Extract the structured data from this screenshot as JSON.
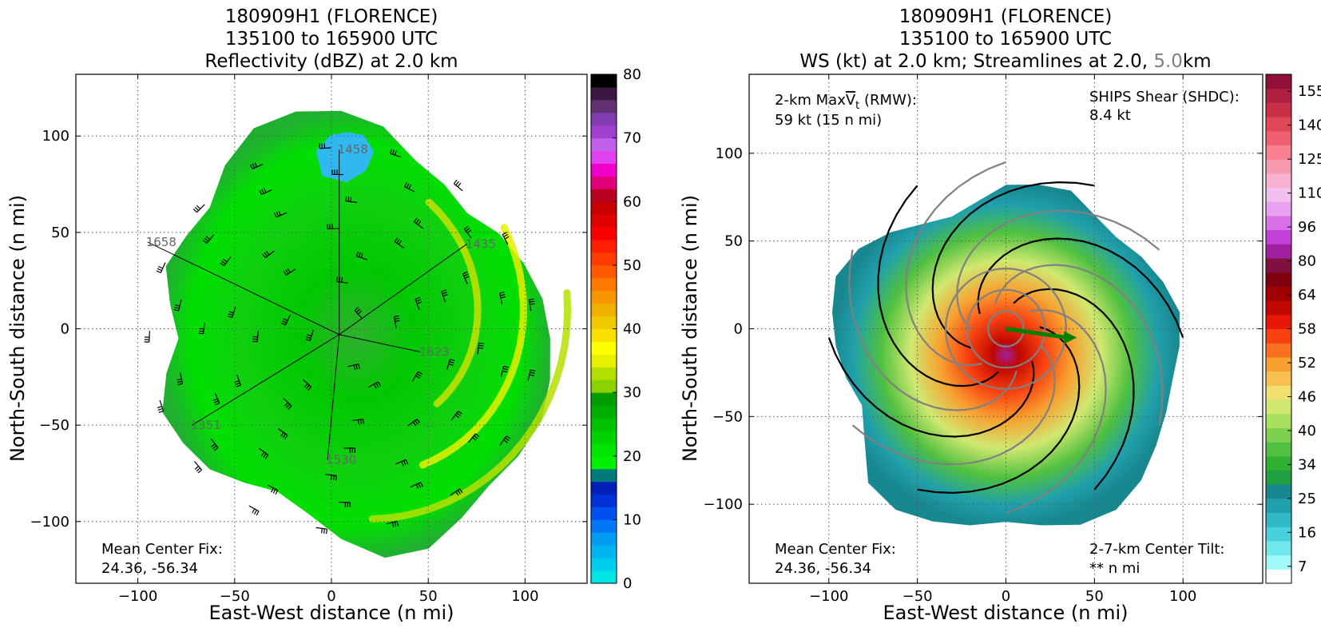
{
  "chart_data": [
    {
      "type": "heatmap",
      "title_lines": [
        "180909H1 (FLORENCE)",
        "135100 to 165900 UTC",
        "Reflectivity (dBZ) at 2.0 km"
      ],
      "xlabel": "East-West distance (n mi)",
      "ylabel": "North-South distance (n mi)",
      "xlim": [
        -132,
        132
      ],
      "ylim": [
        -132,
        132
      ],
      "xticks": [
        -100,
        -50,
        0,
        50,
        100
      ],
      "yticks": [
        -100,
        -50,
        0,
        50,
        100
      ],
      "xtick_labels": [
        "−100",
        "−50",
        "0",
        "50",
        "100"
      ],
      "ytick_labels": [
        "−100",
        "−50",
        "0",
        "50",
        "100"
      ],
      "grid": true,
      "colorbar": {
        "range": [
          0,
          80
        ],
        "ticks": [
          0,
          10,
          20,
          30,
          40,
          50,
          60,
          70,
          80
        ],
        "tick_labels": [
          "0",
          "10",
          "20",
          "30",
          "40",
          "50",
          "60",
          "70",
          "80"
        ],
        "colors": [
          "#00e4e4",
          "#00cdee",
          "#00b4f0",
          "#009cf3",
          "#0078f5",
          "#0050f0",
          "#0032d8",
          "#0020b8",
          "#007a7a",
          "#00f000",
          "#00e400",
          "#00d200",
          "#00c000",
          "#00ae00",
          "#009c00",
          "#8cd200",
          "#b4e000",
          "#e8f000",
          "#ffff00",
          "#f8e000",
          "#f0c800",
          "#f0b000",
          "#f89600",
          "#ff7800",
          "#ff5a00",
          "#ff3c00",
          "#ff1e00",
          "#f80000",
          "#e00000",
          "#c80000",
          "#b80020",
          "#e0007a",
          "#f000c8",
          "#e040f0",
          "#c060e8",
          "#a040d0",
          "#803cb0",
          "#603070",
          "#3a1840",
          "#000000"
        ]
      },
      "flight_legs": [
        {
          "label": "1458",
          "start": [
            4,
            93
          ],
          "end": [
            4,
            -3
          ]
        },
        {
          "label": "1435",
          "start": [
            70,
            44
          ],
          "end": [
            4,
            -3
          ]
        },
        {
          "label": "1658",
          "start": [
            -95,
            45
          ],
          "end": [
            4,
            -3
          ]
        },
        {
          "label": "1623",
          "start": [
            46,
            -12
          ],
          "end": [
            4,
            -3
          ]
        },
        {
          "label": "1351",
          "start": [
            -72,
            -50
          ],
          "end": [
            4,
            -3
          ]
        },
        {
          "label": "1530",
          "start": [
            -2,
            -68
          ],
          "end": [
            4,
            -3
          ]
        }
      ],
      "note": [
        "Mean Center Fix:",
        "24.36, -56.34"
      ]
    },
    {
      "type": "heatmap",
      "title_lines": [
        "180909H1 (FLORENCE)",
        "135100 to 165900 UTC"
      ],
      "title_line3": {
        "prefix": "WS (kt) at 2.0 km; Streamlines at 2.0, ",
        "highlight": "5.0",
        "suffix": "km",
        "highlight_color": "#808080"
      },
      "xlabel": "East-West distance (n mi)",
      "ylabel": "North-South distance (n mi)",
      "xlim": [
        -145,
        145
      ],
      "ylim": [
        -145,
        145
      ],
      "xticks": [
        -100,
        -50,
        0,
        50,
        100
      ],
      "yticks": [
        -100,
        -50,
        0,
        50,
        100
      ],
      "xtick_labels": [
        "−100",
        "−50",
        "0",
        "50",
        "100"
      ],
      "ytick_labels": [
        "−100",
        "−50",
        "0",
        "50",
        "100"
      ],
      "grid": true,
      "colorbar": {
        "range": [
          7,
          160
        ],
        "tick_labels": [
          "7",
          "16",
          "25",
          "34",
          "40",
          "46",
          "52",
          "58",
          "64",
          "80",
          "96",
          "110",
          "125",
          "140",
          "155"
        ],
        "colors": [
          "#ffffff",
          "#a0f8f8",
          "#70e8ec",
          "#48d0dc",
          "#30b8c4",
          "#20a0ac",
          "#188890",
          "#20a040",
          "#30b030",
          "#50c040",
          "#80d050",
          "#a8e060",
          "#d0e870",
          "#f0e070",
          "#f8c050",
          "#f8a030",
          "#f87020",
          "#f84010",
          "#e81808",
          "#c00800",
          "#a00000",
          "#800010",
          "#801040",
          "#a020a0",
          "#c040d8",
          "#d870e8",
          "#e8a0f0",
          "#f0c0f0",
          "#f8b0d0",
          "#f898b0",
          "#f88090",
          "#f06070",
          "#e04858",
          "#c83048",
          "#b02040",
          "#901038"
        ]
      },
      "max_wind_note": {
        "line1_prefix": "2-km Max",
        "line1_symbol": "V",
        "line1_subscript": "t",
        "line1_suffix": " (RMW):",
        "line2": "59 kt (15 n mi)"
      },
      "shear_note": [
        "SHIPS Shear (SHDC):",
        "8.4 kt"
      ],
      "shear_color": "#008000",
      "shear_vector": {
        "from": [
          0,
          0
        ],
        "to": [
          40,
          -5
        ]
      },
      "note": [
        "Mean Center Fix:",
        "24.36, -56.34"
      ],
      "tilt_note": [
        "2-7-km Center Tilt:",
        "** n mi"
      ],
      "tilt_color": "#ff0000"
    }
  ]
}
